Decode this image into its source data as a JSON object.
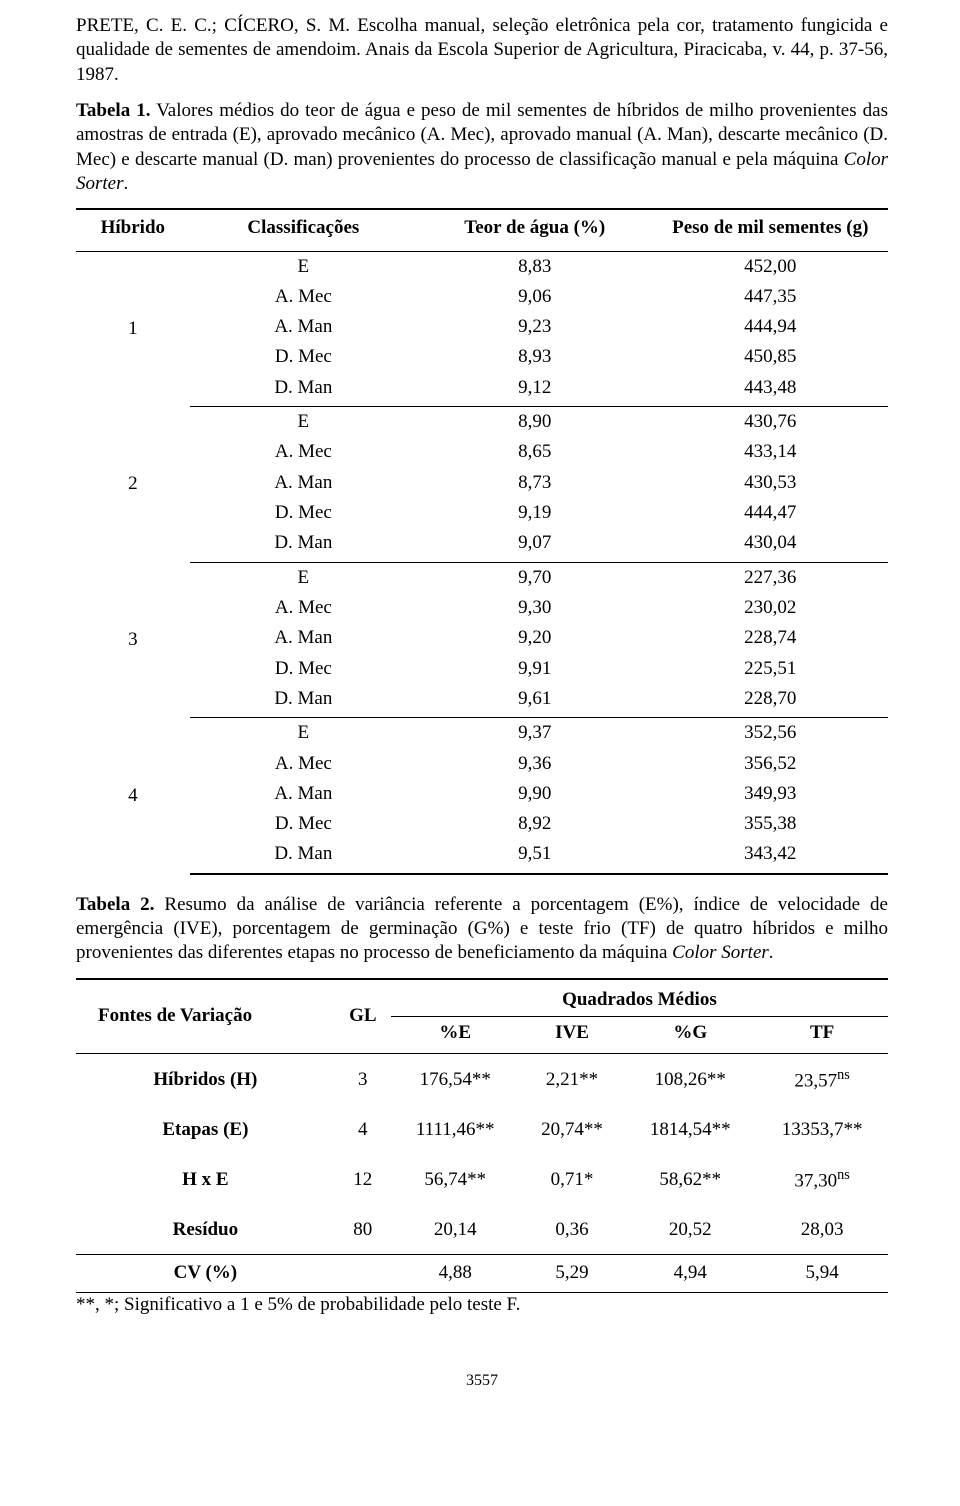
{
  "paragraphs": {
    "ref": "PRETE, C. E. C.; CÍCERO, S. M. Escolha manual, seleção eletrônica pela cor, tratamento fungicida e qualidade de sementes de amendoim. Anais da Escola Superior de Agricultura, Piracicaba, v. 44, p. 37-56, 1987.",
    "tab1_caption_bold": "Tabela 1.",
    "tab1_caption_rest": " Valores médios do teor de água e peso de mil sementes de híbridos de milho provenientes das amostras de entrada (E), aprovado mecânico (A. Mec), aprovado manual (A. Man), descarte mecânico (D. Mec) e descarte manual (D. man) provenientes do processo de classificação manual e pela máquina ",
    "tab1_caption_italic": "Color Sorter",
    "tab1_caption_end": ".",
    "tab2_caption_bold": "Tabela 2.",
    "tab2_caption_rest": " Resumo da análise de variância referente a porcentagem (E%), índice de velocidade de emergência (IVE), porcentagem de germinação (G%) e teste frio (TF)  de quatro híbridos e milho provenientes das diferentes etapas no processo de beneficiamento da máquina ",
    "tab2_caption_italic": "Color Sorter",
    "tab2_caption_end": ".",
    "footnote": "**, *; Significativo a 1 e 5% de probabilidade pelo teste F.",
    "pagenum": "3557"
  },
  "table1": {
    "headers": {
      "hibrido": "Híbrido",
      "classif": "Classificações",
      "teor": "Teor de água (%)",
      "peso": "Peso de mil sementes (g)"
    },
    "groups": [
      {
        "hybrid": "1",
        "rows": [
          {
            "cls": "E",
            "teor": "8,83",
            "peso": "452,00"
          },
          {
            "cls": "A. Mec",
            "teor": "9,06",
            "peso": "447,35"
          },
          {
            "cls": "A. Man",
            "teor": "9,23",
            "peso": "444,94"
          },
          {
            "cls": "D. Mec",
            "teor": "8,93",
            "peso": "450,85"
          },
          {
            "cls": "D. Man",
            "teor": "9,12",
            "peso": "443,48"
          }
        ]
      },
      {
        "hybrid": "2",
        "rows": [
          {
            "cls": "E",
            "teor": "8,90",
            "peso": "430,76"
          },
          {
            "cls": "A. Mec",
            "teor": "8,65",
            "peso": "433,14"
          },
          {
            "cls": "A. Man",
            "teor": "8,73",
            "peso": "430,53"
          },
          {
            "cls": "D. Mec",
            "teor": "9,19",
            "peso": "444,47"
          },
          {
            "cls": "D. Man",
            "teor": "9,07",
            "peso": "430,04"
          }
        ]
      },
      {
        "hybrid": "3",
        "rows": [
          {
            "cls": "E",
            "teor": "9,70",
            "peso": "227,36"
          },
          {
            "cls": "A. Mec",
            "teor": "9,30",
            "peso": "230,02"
          },
          {
            "cls": "A. Man",
            "teor": "9,20",
            "peso": "228,74"
          },
          {
            "cls": "D. Mec",
            "teor": "9,91",
            "peso": "225,51"
          },
          {
            "cls": "D. Man",
            "teor": "9,61",
            "peso": "228,70"
          }
        ]
      },
      {
        "hybrid": "4",
        "rows": [
          {
            "cls": "E",
            "teor": "9,37",
            "peso": "352,56"
          },
          {
            "cls": "A. Mec",
            "teor": "9,36",
            "peso": "356,52"
          },
          {
            "cls": "A. Man",
            "teor": "9,90",
            "peso": "349,93"
          },
          {
            "cls": "D. Mec",
            "teor": "8,92",
            "peso": "355,38"
          },
          {
            "cls": "D. Man",
            "teor": "9,51",
            "peso": "343,42"
          }
        ]
      }
    ]
  },
  "table2": {
    "headers": {
      "fv": "Fontes de Variação",
      "gl": "GL",
      "qm": "Quadrados Médios",
      "e": "%E",
      "ive": "IVE",
      "g": "%G",
      "tf": "TF"
    },
    "rows": [
      {
        "label": "Híbridos (H)",
        "gl": "3",
        "e": "176,54**",
        "ive": "2,21**",
        "g": "108,26**",
        "tf": "23,57",
        "tfsup": "ns"
      },
      {
        "label": "Etapas (E)",
        "gl": "4",
        "e": "1111,46**",
        "ive": "20,74**",
        "g": "1814,54**",
        "tf": "13353,7**",
        "tfsup": ""
      },
      {
        "label": "H x E",
        "gl": "12",
        "e": "56,74**",
        "ive": "0,71*",
        "g": "58,62**",
        "tf": "37,30",
        "tfsup": "ns"
      },
      {
        "label": "Resíduo",
        "gl": "80",
        "e": "20,14",
        "ive": "0,36",
        "g": "20,52",
        "tf": "28,03",
        "tfsup": ""
      }
    ],
    "cv": {
      "label": "CV (%)",
      "gl": "",
      "e": "4,88",
      "ive": "5,29",
      "g": "4,94",
      "tf": "5,94"
    }
  }
}
